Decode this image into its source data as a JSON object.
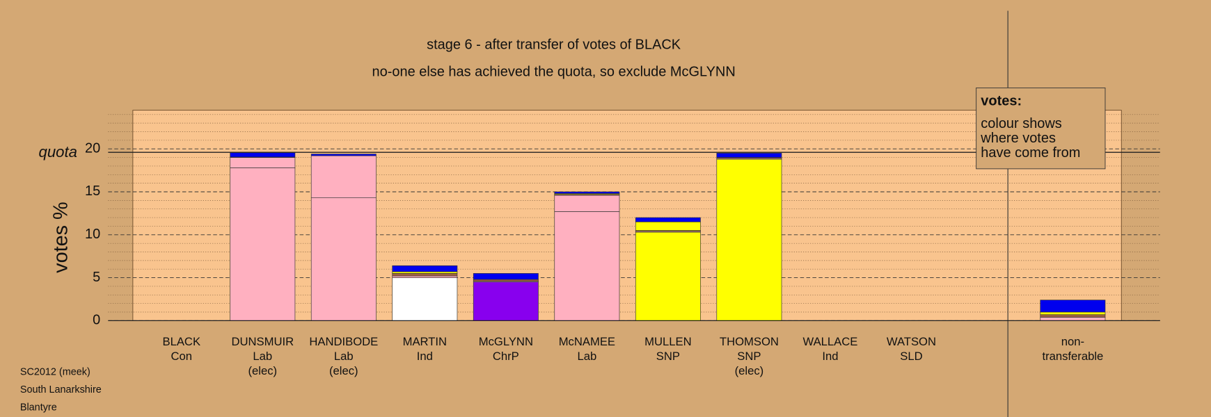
{
  "chart_data": {
    "type": "stacked-bar",
    "title": "stage 6 - after transfer of votes of BLACK",
    "subtitle": "no-one else has achieved the quota, so exclude McGLYNN",
    "y_label": "votes %",
    "categories": [
      [
        "BLACK",
        "Con"
      ],
      [
        "DUNSMUIR",
        "Lab",
        "(elec)"
      ],
      [
        "HANDIBODE",
        "Lab",
        "(elec)"
      ],
      [
        "MARTIN",
        "Ind"
      ],
      [
        "McGLYNN",
        "ChrP"
      ],
      [
        "McNAMEE",
        "Lab"
      ],
      [
        "MULLEN",
        "SNP"
      ],
      [
        "THOMSON",
        "SNP",
        "(elec)"
      ],
      [
        "WALLACE",
        "Ind"
      ],
      [
        "WATSON",
        "SLD"
      ],
      [
        "non-",
        "transferable"
      ]
    ],
    "series": [
      {
        "color": "#ffb0c0",
        "values": [
          0,
          17.8,
          14.3,
          0,
          0,
          12.7,
          0,
          0,
          0,
          0,
          0
        ]
      },
      {
        "color": "#ffffff",
        "values": [
          0,
          0,
          0,
          5.0,
          0,
          0,
          0,
          0,
          0,
          0,
          0
        ]
      },
      {
        "color": "#8800ee",
        "values": [
          0,
          0,
          0,
          0,
          4.5,
          0,
          0,
          0,
          0,
          0,
          0
        ]
      },
      {
        "color": "#ffff00",
        "values": [
          0,
          0,
          0,
          0,
          0,
          0,
          10.3,
          18.8,
          0,
          0,
          0
        ]
      },
      {
        "color": "#ffb0c0",
        "values": [
          0,
          1.2,
          4.9,
          0.2,
          0.1,
          1.9,
          0.1,
          0.1,
          0,
          0,
          0.4
        ]
      },
      {
        "color": "#a06040",
        "values": [
          0,
          0.05,
          0,
          0.3,
          0.2,
          0.1,
          0.1,
          0.1,
          0,
          0,
          0.3
        ]
      },
      {
        "color": "#ffff00",
        "values": [
          0,
          0,
          0,
          0.2,
          0,
          0.1,
          1.0,
          0,
          0,
          0,
          0.3
        ]
      },
      {
        "color": "#0000ee",
        "values": [
          0,
          0.5,
          0.2,
          0.7,
          0.7,
          0.2,
          0.5,
          0.5,
          0,
          0,
          1.4
        ]
      }
    ],
    "ylim": [
      0,
      24.5
    ],
    "yticks": [
      0,
      5,
      10,
      15,
      20
    ],
    "minor_yticks": [
      1,
      2,
      3,
      4,
      6,
      7,
      8,
      9,
      11,
      12,
      13,
      14,
      16,
      17,
      18,
      19,
      21,
      22,
      23,
      24
    ],
    "quota": 19.6,
    "quota_label": "quota",
    "note_title": "votes:",
    "note_lines": [
      "colour shows",
      "where votes",
      "have come from"
    ],
    "footer": [
      "SC2012 (meek)",
      "South Lanarkshire",
      "Blantyre"
    ]
  }
}
